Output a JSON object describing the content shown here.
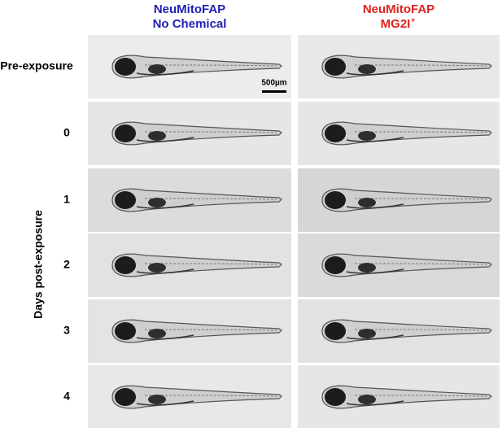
{
  "columns": [
    {
      "line1": "NeuMitoFAP",
      "line2": "No Chemical"
    },
    {
      "line1": "NeuMitoFAP",
      "line2": "MG2I",
      "superscript": "+"
    }
  ],
  "rows": [
    "Pre-exposure",
    "0",
    "1",
    "2",
    "3",
    "4"
  ],
  "y_axis_label": "Days post-exposure",
  "scale_bar": "500µm"
}
